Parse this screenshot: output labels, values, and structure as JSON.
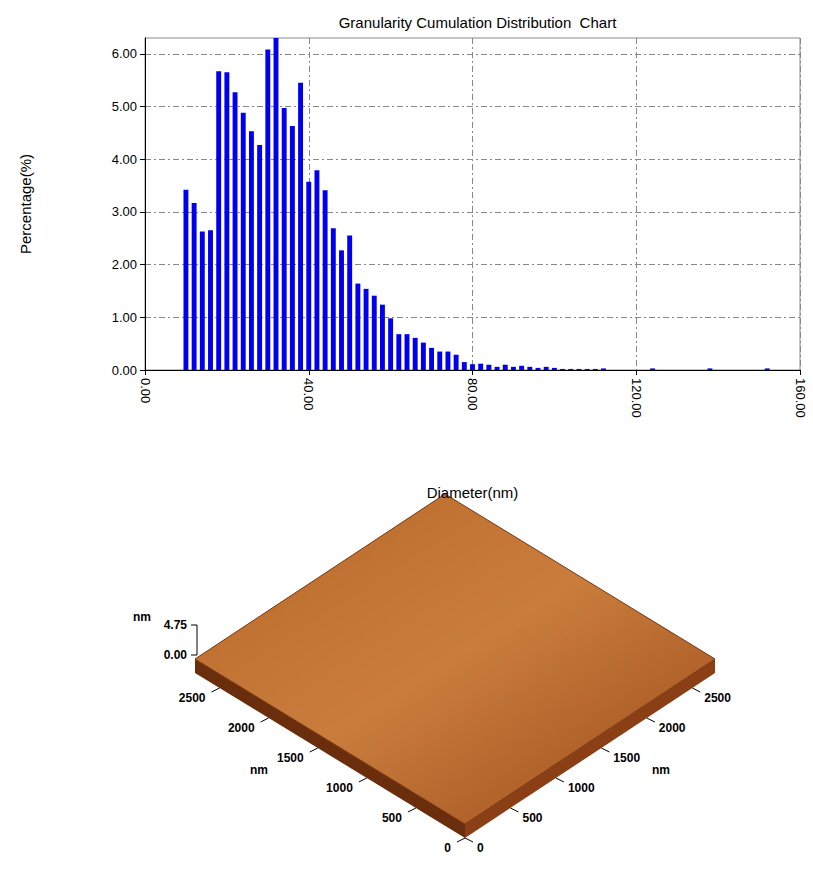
{
  "chart_data": {
    "type": "histogram",
    "title": "Granularity Cumulation Distribution  Chart",
    "x_label": "Diameter(nm)",
    "y_label": "Percentage(%)",
    "bins": [
      9,
      11,
      13,
      15,
      17,
      19,
      21,
      23,
      25,
      27,
      29,
      31,
      33,
      35,
      37,
      39,
      41,
      43,
      45,
      47,
      49,
      51,
      53,
      55,
      57,
      59,
      61,
      63,
      65,
      67,
      69,
      71,
      73,
      75,
      77,
      79,
      81,
      83,
      85,
      87,
      89,
      91,
      93,
      95,
      97,
      99,
      101,
      103,
      105,
      107,
      109,
      111,
      113,
      115,
      117,
      119,
      121,
      123,
      125,
      127,
      129,
      131,
      133,
      135,
      137,
      139,
      141,
      143,
      145,
      147,
      149,
      151,
      153
    ],
    "values": [
      3.42,
      3.17,
      2.63,
      2.65,
      5.67,
      5.65,
      5.27,
      4.88,
      4.53,
      4.27,
      6.08,
      6.3,
      4.97,
      4.63,
      5.45,
      3.57,
      3.79,
      3.41,
      2.69,
      2.27,
      2.55,
      1.64,
      1.54,
      1.41,
      1.24,
      0.98,
      0.68,
      0.68,
      0.61,
      0.52,
      0.42,
      0.35,
      0.35,
      0.29,
      0.15,
      0.11,
      0.12,
      0.1,
      0.06,
      0.1,
      0.06,
      0.08,
      0.06,
      0.04,
      0.06,
      0.04,
      0.02,
      0.02,
      0.02,
      0.02,
      0.02,
      0.03,
      0,
      0,
      0,
      0,
      0,
      0.03,
      0,
      0,
      0,
      0,
      0,
      0,
      0.03,
      0,
      0,
      0,
      0,
      0,
      0,
      0.03
    ],
    "color": "#0000ee",
    "xlim": [
      0,
      160
    ],
    "xticks": [
      {
        "value": 0,
        "label": "0.00"
      },
      {
        "value": 40,
        "label": "40.00"
      },
      {
        "value": 80,
        "label": "80.00"
      },
      {
        "value": 120,
        "label": "120.00"
      },
      {
        "value": 160,
        "label": "160.00"
      }
    ],
    "ylim": [
      0,
      6.3
    ],
    "yticks": [
      {
        "value": 0,
        "label": "0.00"
      },
      {
        "value": 1,
        "label": "1.00"
      },
      {
        "value": 2,
        "label": "2.00"
      },
      {
        "value": 3,
        "label": "3.00"
      },
      {
        "value": 4,
        "label": "4.00"
      },
      {
        "value": 5,
        "label": "5.00"
      },
      {
        "value": 6,
        "label": "6.00"
      }
    ],
    "grid": true
  },
  "afm_image": {
    "z_axis": {
      "label": "nm",
      "lim": [
        0,
        4.75
      ],
      "ticks": [
        {
          "value": 0,
          "label": "0.00"
        },
        4.75
      ]
    },
    "left_axis": {
      "label": "nm",
      "lim": [
        0,
        2750
      ],
      "ticks": [
        0,
        500,
        1000,
        1500,
        2000,
        2500
      ]
    },
    "right_axis": {
      "label": "nm",
      "lim": [
        0,
        2750
      ],
      "ticks": [
        0,
        500,
        1000,
        1500,
        2000,
        2500
      ]
    }
  }
}
